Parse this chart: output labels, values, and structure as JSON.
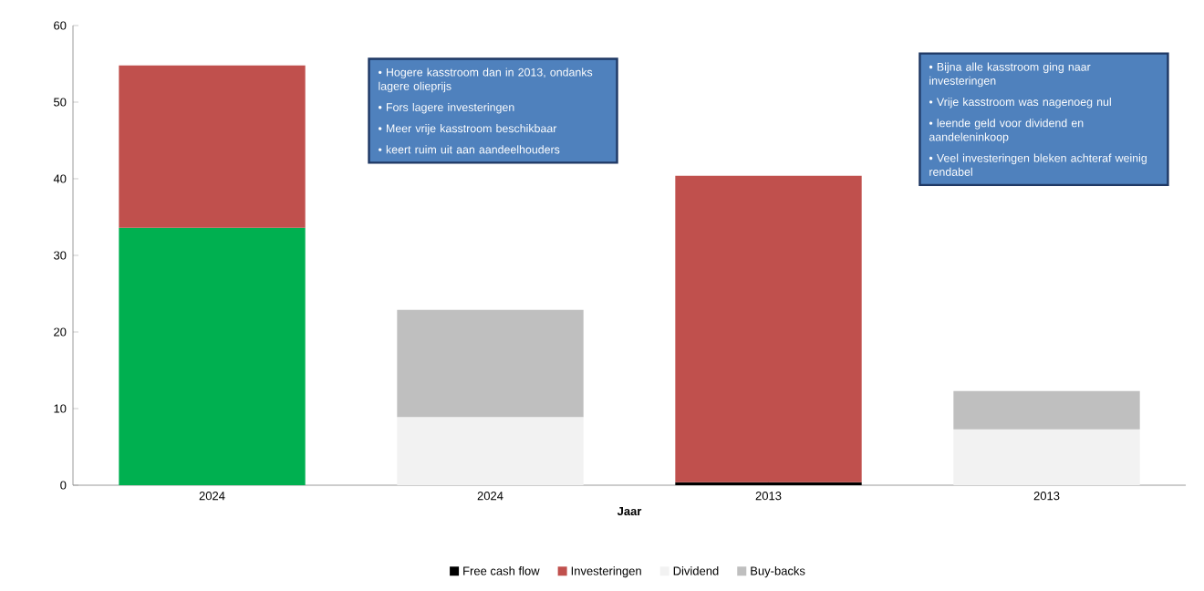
{
  "chart_data": {
    "type": "bar",
    "stacked": true,
    "xlabel": "Jaar",
    "categories": [
      "2024",
      "2024",
      "2013",
      "2013"
    ],
    "series": [
      {
        "name": "Free cash flow",
        "color": "#000000",
        "colors": [
          "#00b050",
          "#000000",
          "#000000",
          "#000000"
        ],
        "values": [
          33.6,
          null,
          0.4,
          null
        ]
      },
      {
        "name": "Investeringen",
        "color": "#c0504d",
        "values": [
          21.2,
          null,
          40.0,
          null
        ]
      },
      {
        "name": "Dividend",
        "color": "#f2f2f2",
        "values": [
          null,
          8.9,
          null,
          7.3
        ]
      },
      {
        "name": "Buy-backs",
        "color": "#bfbfbf",
        "values": [
          null,
          14.0,
          null,
          5.0
        ]
      }
    ],
    "ylim": [
      0,
      60
    ],
    "yticks": [
      0,
      10,
      20,
      30,
      40,
      50,
      60
    ],
    "legend": "bottom",
    "annotations": [
      "• Hogere kasstroom dan in 2013, ondanks lagere olieprijs",
      "• Fors lagere investeringen",
      "• Meer vrije kasstroom beschikbaar",
      "• keert ruim uit aan aandeelhouders",
      "• Bijna alle kasstroom ging naar investeringen",
      "• Vrije kasstroom was nagenoeg nul",
      "• leende geld voor dividend en aandeleninkoop",
      "• Veel investeringen bleken achteraf weinig rendabel"
    ]
  }
}
